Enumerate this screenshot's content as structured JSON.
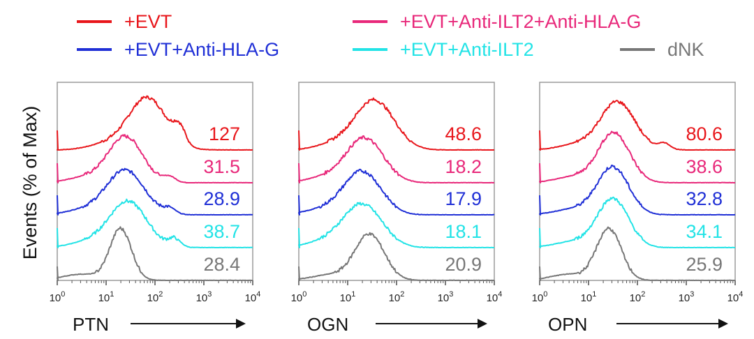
{
  "chart_data": {
    "type": "histogram-overlay",
    "title": "",
    "ylabel": "Events (% of Max)",
    "legend": {
      "placement": "top",
      "entries": [
        {
          "key": "evt",
          "label": "+EVT",
          "color": "#e8161b"
        },
        {
          "key": "evt_ilt2_hlag",
          "label": "+EVT+Anti-ILT2+Anti-HLA-G",
          "color": "#e8287a"
        },
        {
          "key": "evt_hlag",
          "label": "+EVT+Anti-HLA-G",
          "color": "#1f2fd6"
        },
        {
          "key": "evt_ilt2",
          "label": "+EVT+Anti-ILT2",
          "color": "#22e3e6"
        },
        {
          "key": "dnk",
          "label": "dNK",
          "color": "#777777"
        }
      ]
    },
    "x_axis": {
      "scale": "log10",
      "xlim": [
        1,
        10000
      ],
      "tick_labels": [
        {
          "base": "10",
          "exp": "0"
        },
        {
          "base": "10",
          "exp": "1"
        },
        {
          "base": "10",
          "exp": "2"
        },
        {
          "base": "10",
          "exp": "3"
        },
        {
          "base": "10",
          "exp": "4"
        }
      ]
    },
    "panels": [
      {
        "xlabel": "PTN",
        "series": [
          {
            "key": "evt",
            "mfi": "127",
            "peak_log10": 1.85,
            "width": 0.38,
            "height": 1.0,
            "shoulder": [
              2.5,
              0.3
            ]
          },
          {
            "key": "evt_ilt2_hlag",
            "mfi": "31.5",
            "peak_log10": 1.4,
            "width": 0.35,
            "height": 0.85,
            "shoulder": [
              2.3,
              0.1
            ]
          },
          {
            "key": "evt_hlag",
            "mfi": "28.9",
            "peak_log10": 1.4,
            "width": 0.38,
            "height": 0.82,
            "shoulder": [
              2.3,
              0.1
            ]
          },
          {
            "key": "evt_ilt2",
            "mfi": "38.7",
            "peak_log10": 1.45,
            "width": 0.38,
            "height": 0.85,
            "shoulder": [
              2.4,
              0.15
            ]
          },
          {
            "key": "dnk",
            "mfi": "28.4",
            "peak_log10": 1.3,
            "width": 0.22,
            "height": 0.95,
            "shoulder": null
          }
        ]
      },
      {
        "xlabel": "OGN",
        "series": [
          {
            "key": "evt",
            "mfi": "48.6",
            "peak_log10": 1.55,
            "width": 0.4,
            "height": 0.95,
            "shoulder": null
          },
          {
            "key": "evt_ilt2_hlag",
            "mfi": "18.2",
            "peak_log10": 1.35,
            "width": 0.38,
            "height": 0.82,
            "shoulder": null
          },
          {
            "key": "evt_hlag",
            "mfi": "17.9",
            "peak_log10": 1.3,
            "width": 0.38,
            "height": 0.8,
            "shoulder": null
          },
          {
            "key": "evt_ilt2",
            "mfi": "18.1",
            "peak_log10": 1.3,
            "width": 0.4,
            "height": 0.8,
            "shoulder": null
          },
          {
            "key": "dnk",
            "mfi": "20.9",
            "peak_log10": 1.45,
            "width": 0.3,
            "height": 0.85,
            "shoulder": null
          }
        ]
      },
      {
        "xlabel": "OPN",
        "series": [
          {
            "key": "evt",
            "mfi": "80.6",
            "peak_log10": 1.6,
            "width": 0.35,
            "height": 0.92,
            "shoulder": [
              2.55,
              0.12
            ]
          },
          {
            "key": "evt_ilt2_hlag",
            "mfi": "38.6",
            "peak_log10": 1.52,
            "width": 0.32,
            "height": 0.92,
            "shoulder": null
          },
          {
            "key": "evt_hlag",
            "mfi": "32.8",
            "peak_log10": 1.5,
            "width": 0.32,
            "height": 0.88,
            "shoulder": null
          },
          {
            "key": "evt_ilt2",
            "mfi": "34.1",
            "peak_log10": 1.5,
            "width": 0.32,
            "height": 0.9,
            "shoulder": null
          },
          {
            "key": "dnk",
            "mfi": "25.9",
            "peak_log10": 1.42,
            "width": 0.25,
            "height": 0.95,
            "shoulder": null
          }
        ]
      }
    ]
  }
}
